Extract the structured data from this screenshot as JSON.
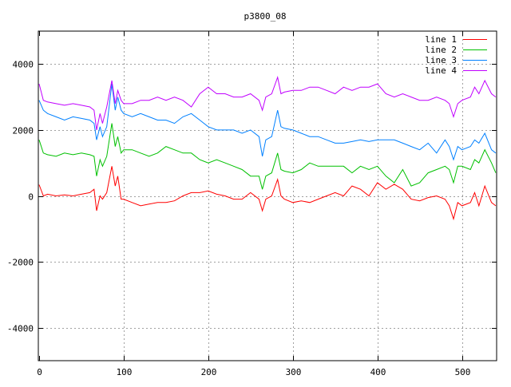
{
  "chart_data": {
    "type": "line",
    "title": "p3800_08",
    "xlabel": "",
    "ylabel": "",
    "xlim": [
      0,
      541
    ],
    "ylim": [
      -5000,
      5000
    ],
    "xticks": [
      0,
      100,
      200,
      300,
      400,
      500
    ],
    "yticks": [
      -4000,
      -2000,
      0,
      2000,
      4000
    ],
    "grid": true,
    "legend_position": "top-right",
    "x": [
      0,
      5,
      10,
      20,
      30,
      40,
      50,
      60,
      65,
      68,
      72,
      75,
      80,
      86,
      90,
      93,
      97,
      100,
      110,
      120,
      130,
      140,
      150,
      160,
      170,
      180,
      190,
      200,
      210,
      220,
      230,
      240,
      250,
      260,
      264,
      268,
      275,
      282,
      286,
      290,
      300,
      310,
      320,
      330,
      340,
      350,
      360,
      370,
      380,
      390,
      400,
      410,
      420,
      430,
      440,
      450,
      460,
      470,
      480,
      485,
      490,
      495,
      500,
      510,
      515,
      520,
      527,
      535,
      540
    ],
    "series": [
      {
        "name": "line 1",
        "color": "#ff0000",
        "values": [
          340,
          0,
          50,
          0,
          30,
          0,
          50,
          100,
          200,
          -450,
          0,
          -100,
          100,
          900,
          300,
          600,
          -100,
          -100,
          -200,
          -300,
          -250,
          -200,
          -200,
          -150,
          0,
          100,
          100,
          150,
          50,
          0,
          -100,
          -100,
          100,
          -100,
          -450,
          -100,
          0,
          500,
          0,
          -100,
          -200,
          -150,
          -200,
          -100,
          0,
          100,
          0,
          300,
          200,
          0,
          400,
          200,
          350,
          200,
          -100,
          -150,
          -50,
          0,
          -100,
          -300,
          -700,
          -200,
          -300,
          -200,
          100,
          -300,
          300,
          -200,
          -300
        ]
      },
      {
        "name": "line 2",
        "color": "#00c000",
        "values": [
          1700,
          1300,
          1250,
          1200,
          1300,
          1250,
          1300,
          1250,
          1200,
          600,
          1100,
          900,
          1200,
          2200,
          1500,
          1800,
          1300,
          1400,
          1400,
          1300,
          1200,
          1300,
          1500,
          1400,
          1300,
          1300,
          1100,
          1000,
          1100,
          1000,
          900,
          800,
          600,
          600,
          200,
          600,
          700,
          1300,
          800,
          750,
          700,
          800,
          1000,
          900,
          900,
          900,
          900,
          700,
          900,
          800,
          900,
          600,
          400,
          800,
          300,
          400,
          700,
          800,
          900,
          800,
          400,
          900,
          900,
          800,
          1100,
          1000,
          1400,
          1000,
          700
        ]
      },
      {
        "name": "line 3",
        "color": "#0080ff",
        "values": [
          2900,
          2600,
          2500,
          2400,
          2300,
          2400,
          2350,
          2300,
          2200,
          1700,
          2100,
          1800,
          2100,
          3400,
          2600,
          3000,
          2600,
          2500,
          2400,
          2500,
          2400,
          2300,
          2300,
          2200,
          2400,
          2500,
          2300,
          2100,
          2000,
          2000,
          2000,
          1900,
          2000,
          1800,
          1200,
          1700,
          1800,
          2600,
          2100,
          2050,
          2000,
          1900,
          1800,
          1800,
          1700,
          1600,
          1600,
          1650,
          1700,
          1650,
          1700,
          1700,
          1700,
          1600,
          1500,
          1400,
          1600,
          1300,
          1700,
          1500,
          1100,
          1500,
          1400,
          1500,
          1700,
          1600,
          1900,
          1400,
          1300
        ]
      },
      {
        "name": "line 4",
        "color": "#c000ff",
        "values": [
          3400,
          2900,
          2850,
          2800,
          2750,
          2800,
          2750,
          2700,
          2600,
          2000,
          2500,
          2200,
          2700,
          3500,
          2800,
          3200,
          2900,
          2800,
          2800,
          2900,
          2900,
          3000,
          2900,
          3000,
          2900,
          2700,
          3100,
          3300,
          3100,
          3100,
          3000,
          3000,
          3100,
          2900,
          2600,
          3000,
          3100,
          3600,
          3100,
          3150,
          3200,
          3200,
          3300,
          3300,
          3200,
          3100,
          3300,
          3200,
          3300,
          3300,
          3400,
          3100,
          3000,
          3100,
          3000,
          2900,
          2900,
          3000,
          2900,
          2800,
          2400,
          2800,
          2900,
          3000,
          3300,
          3100,
          3500,
          3100,
          3000
        ]
      }
    ]
  }
}
